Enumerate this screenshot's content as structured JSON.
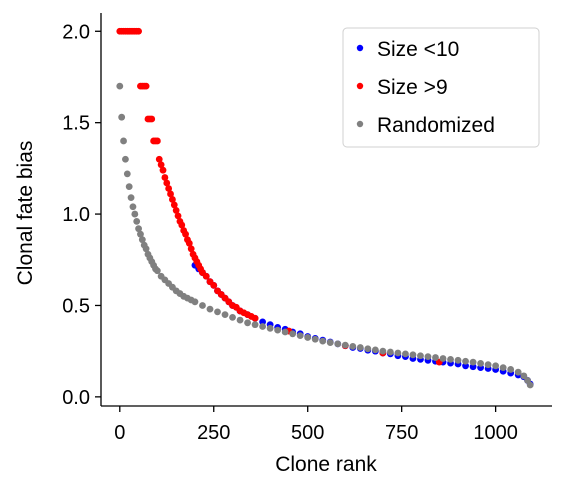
{
  "chart_data": {
    "type": "scatter",
    "xlabel": "Clone rank",
    "ylabel": "Clonal fate bias",
    "xlim": [
      -50,
      1150
    ],
    "ylim": [
      -0.05,
      2.1
    ],
    "xticks": [
      0,
      250,
      500,
      750,
      1000
    ],
    "xtick_labels": [
      "0",
      "250",
      "500",
      "750",
      "1000"
    ],
    "yticks": [
      0.0,
      0.5,
      1.0,
      1.5,
      2.0
    ],
    "ytick_labels": [
      "0.0",
      "0.5",
      "1.0",
      "1.5",
      "2.0"
    ],
    "grid": false,
    "legend_position": "top-right",
    "series": [
      {
        "name": "Size <10",
        "color": "#0000ff",
        "points": [
          [
            200,
            0.72
          ],
          [
            210,
            0.7
          ],
          [
            220,
            0.68
          ],
          [
            230,
            0.66
          ],
          [
            240,
            0.63
          ],
          [
            250,
            0.61
          ],
          [
            260,
            0.58
          ],
          [
            270,
            0.56
          ],
          [
            280,
            0.54
          ],
          [
            290,
            0.52
          ],
          [
            300,
            0.5
          ],
          [
            320,
            0.47
          ],
          [
            340,
            0.45
          ],
          [
            360,
            0.43
          ],
          [
            380,
            0.41
          ],
          [
            400,
            0.395
          ],
          [
            420,
            0.38
          ],
          [
            440,
            0.37
          ],
          [
            460,
            0.355
          ],
          [
            480,
            0.345
          ],
          [
            500,
            0.33
          ],
          [
            520,
            0.32
          ],
          [
            540,
            0.31
          ],
          [
            560,
            0.3
          ],
          [
            580,
            0.29
          ],
          [
            600,
            0.28
          ],
          [
            620,
            0.27
          ],
          [
            640,
            0.265
          ],
          [
            660,
            0.255
          ],
          [
            680,
            0.25
          ],
          [
            700,
            0.24
          ],
          [
            720,
            0.235
          ],
          [
            740,
            0.225
          ],
          [
            760,
            0.22
          ],
          [
            780,
            0.21
          ],
          [
            800,
            0.205
          ],
          [
            820,
            0.2
          ],
          [
            840,
            0.195
          ],
          [
            860,
            0.19
          ],
          [
            880,
            0.185
          ],
          [
            900,
            0.18
          ],
          [
            920,
            0.17
          ],
          [
            940,
            0.165
          ],
          [
            960,
            0.16
          ],
          [
            980,
            0.155
          ],
          [
            1000,
            0.15
          ],
          [
            1020,
            0.14
          ],
          [
            1040,
            0.13
          ],
          [
            1060,
            0.12
          ],
          [
            1075,
            0.11
          ],
          [
            1085,
            0.09
          ],
          [
            1092,
            0.07
          ]
        ]
      },
      {
        "name": "Size >9",
        "color": "#ff0000",
        "points": [
          [
            0,
            2.0
          ],
          [
            5,
            2.0
          ],
          [
            10,
            2.0
          ],
          [
            15,
            2.0
          ],
          [
            20,
            2.0
          ],
          [
            25,
            2.0
          ],
          [
            30,
            2.0
          ],
          [
            35,
            2.0
          ],
          [
            40,
            2.0
          ],
          [
            45,
            2.0
          ],
          [
            50,
            2.0
          ],
          [
            55,
            1.7
          ],
          [
            60,
            1.7
          ],
          [
            65,
            1.7
          ],
          [
            70,
            1.7
          ],
          [
            75,
            1.52
          ],
          [
            80,
            1.52
          ],
          [
            85,
            1.52
          ],
          [
            90,
            1.4
          ],
          [
            95,
            1.4
          ],
          [
            100,
            1.4
          ],
          [
            105,
            1.3
          ],
          [
            110,
            1.27
          ],
          [
            115,
            1.24
          ],
          [
            120,
            1.2
          ],
          [
            125,
            1.17
          ],
          [
            130,
            1.14
          ],
          [
            135,
            1.11
          ],
          [
            140,
            1.08
          ],
          [
            145,
            1.05
          ],
          [
            150,
            1.02
          ],
          [
            155,
            0.99
          ],
          [
            160,
            0.96
          ],
          [
            165,
            0.94
          ],
          [
            170,
            0.91
          ],
          [
            175,
            0.89
          ],
          [
            180,
            0.86
          ],
          [
            185,
            0.84
          ],
          [
            190,
            0.81
          ],
          [
            195,
            0.78
          ],
          [
            200,
            0.76
          ],
          [
            205,
            0.74
          ],
          [
            210,
            0.72
          ],
          [
            215,
            0.7
          ],
          [
            220,
            0.68
          ],
          [
            230,
            0.66
          ],
          [
            240,
            0.63
          ],
          [
            250,
            0.61
          ],
          [
            260,
            0.58
          ],
          [
            270,
            0.56
          ],
          [
            280,
            0.54
          ],
          [
            290,
            0.52
          ],
          [
            300,
            0.5
          ],
          [
            310,
            0.49
          ],
          [
            320,
            0.47
          ],
          [
            330,
            0.46
          ],
          [
            340,
            0.45
          ],
          [
            350,
            0.44
          ],
          [
            360,
            0.43
          ],
          [
            450,
            0.36
          ],
          [
            600,
            0.28
          ],
          [
            700,
            0.24
          ],
          [
            850,
            0.19
          ]
        ]
      },
      {
        "name": "Randomized",
        "color": "#808080",
        "points": [
          [
            0,
            1.7
          ],
          [
            5,
            1.53
          ],
          [
            10,
            1.4
          ],
          [
            15,
            1.3
          ],
          [
            20,
            1.22
          ],
          [
            25,
            1.15
          ],
          [
            30,
            1.09
          ],
          [
            35,
            1.04
          ],
          [
            40,
            1.0
          ],
          [
            45,
            0.96
          ],
          [
            50,
            0.92
          ],
          [
            55,
            0.89
          ],
          [
            60,
            0.86
          ],
          [
            65,
            0.83
          ],
          [
            70,
            0.81
          ],
          [
            75,
            0.78
          ],
          [
            80,
            0.76
          ],
          [
            85,
            0.74
          ],
          [
            90,
            0.72
          ],
          [
            95,
            0.7
          ],
          [
            100,
            0.69
          ],
          [
            110,
            0.66
          ],
          [
            120,
            0.64
          ],
          [
            130,
            0.62
          ],
          [
            140,
            0.6
          ],
          [
            150,
            0.58
          ],
          [
            160,
            0.565
          ],
          [
            170,
            0.55
          ],
          [
            180,
            0.54
          ],
          [
            190,
            0.53
          ],
          [
            200,
            0.52
          ],
          [
            220,
            0.5
          ],
          [
            240,
            0.48
          ],
          [
            260,
            0.465
          ],
          [
            280,
            0.45
          ],
          [
            300,
            0.435
          ],
          [
            320,
            0.42
          ],
          [
            340,
            0.405
          ],
          [
            360,
            0.395
          ],
          [
            380,
            0.385
          ],
          [
            400,
            0.375
          ],
          [
            420,
            0.365
          ],
          [
            440,
            0.355
          ],
          [
            460,
            0.345
          ],
          [
            480,
            0.335
          ],
          [
            500,
            0.325
          ],
          [
            520,
            0.315
          ],
          [
            540,
            0.305
          ],
          [
            560,
            0.297
          ],
          [
            580,
            0.29
          ],
          [
            600,
            0.283
          ],
          [
            620,
            0.276
          ],
          [
            640,
            0.27
          ],
          [
            660,
            0.263
          ],
          [
            680,
            0.257
          ],
          [
            700,
            0.25
          ],
          [
            720,
            0.245
          ],
          [
            740,
            0.24
          ],
          [
            760,
            0.235
          ],
          [
            780,
            0.23
          ],
          [
            800,
            0.225
          ],
          [
            820,
            0.22
          ],
          [
            840,
            0.215
          ],
          [
            860,
            0.21
          ],
          [
            880,
            0.205
          ],
          [
            900,
            0.2
          ],
          [
            920,
            0.195
          ],
          [
            940,
            0.19
          ],
          [
            960,
            0.183
          ],
          [
            980,
            0.176
          ],
          [
            1000,
            0.17
          ],
          [
            1020,
            0.16
          ],
          [
            1040,
            0.15
          ],
          [
            1060,
            0.135
          ],
          [
            1075,
            0.115
          ],
          [
            1085,
            0.09
          ],
          [
            1092,
            0.065
          ]
        ]
      }
    ]
  }
}
